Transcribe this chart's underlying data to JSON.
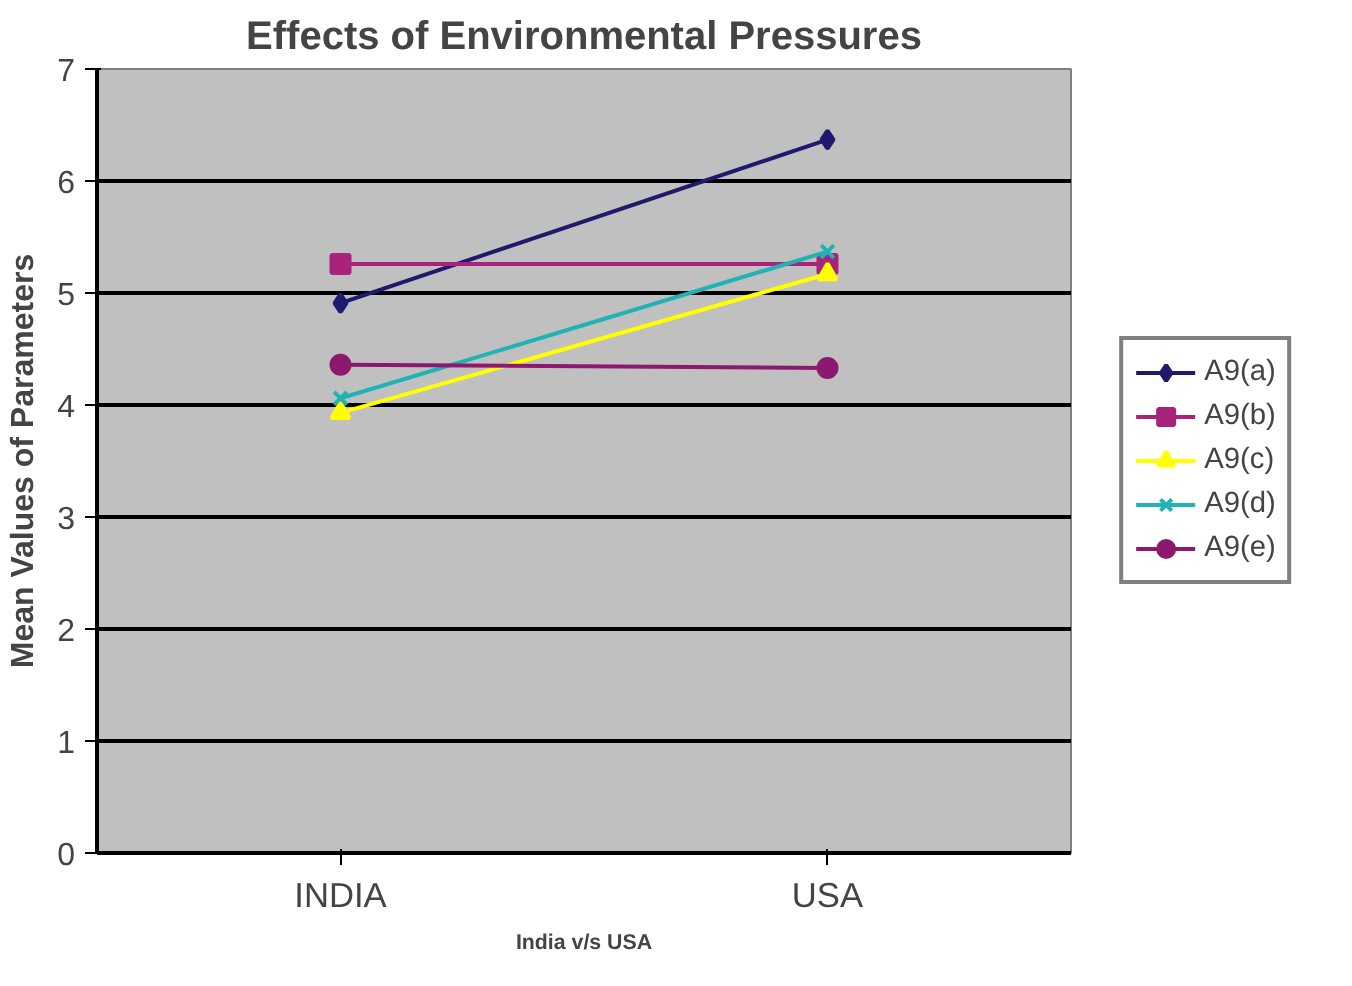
{
  "chart_data": {
    "type": "line",
    "title": "Effects of Environmental Pressures",
    "xlabel": "India v/s USA",
    "ylabel": "Mean Values of Parameters",
    "categories": [
      "INDIA",
      "USA"
    ],
    "series": [
      {
        "name": "A9(a)",
        "color": "#1f1a6e",
        "marker": "diamond",
        "values": [
          4.91,
          6.37
        ]
      },
      {
        "name": "A9(b)",
        "color": "#a8237c",
        "marker": "square",
        "values": [
          5.26,
          5.26
        ]
      },
      {
        "name": "A9(c)",
        "color": "#ffff00",
        "marker": "triangle",
        "values": [
          3.93,
          5.17
        ]
      },
      {
        "name": "A9(d)",
        "color": "#1fb3b3",
        "marker": "cross",
        "values": [
          4.06,
          5.37
        ]
      },
      {
        "name": "A9(e)",
        "color": "#8b1a6e",
        "marker": "circle",
        "values": [
          4.36,
          4.33
        ]
      }
    ],
    "ylim": [
      0,
      7
    ],
    "yticks": [
      0,
      1,
      2,
      3,
      4,
      5,
      6,
      7
    ],
    "grid": "y",
    "legend": "right"
  }
}
